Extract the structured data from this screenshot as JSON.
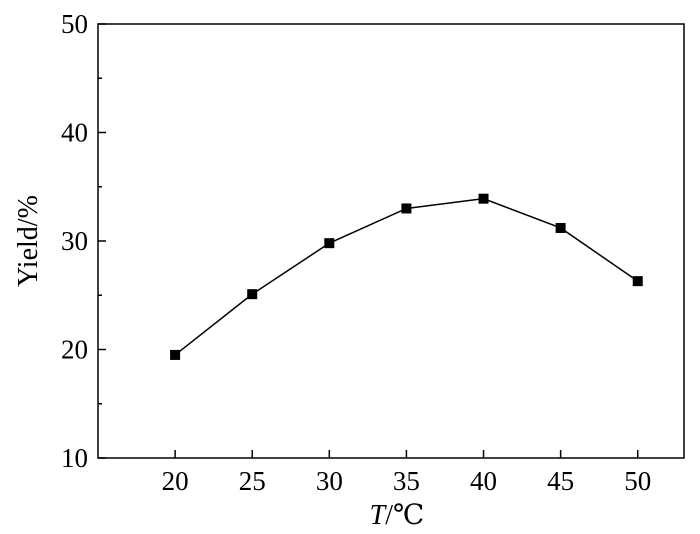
{
  "chart_data": {
    "type": "line",
    "x": [
      20,
      25,
      30,
      35,
      40,
      45,
      50
    ],
    "series": [
      {
        "values": [
          19.5,
          25.1,
          29.8,
          33.0,
          33.9,
          31.2,
          26.3
        ]
      }
    ],
    "xlabel_italic": "T",
    "xlabel_unit": "/℃",
    "ylabel": "Yield/%",
    "xlim": [
      15,
      53
    ],
    "ylim": [
      10,
      50
    ],
    "xticks": [
      "20",
      "25",
      "30",
      "35",
      "40",
      "45",
      "50"
    ],
    "yticks": [
      "10",
      "20",
      "30",
      "40",
      "50"
    ],
    "grid": false,
    "marker": "square",
    "color": "#000000"
  }
}
